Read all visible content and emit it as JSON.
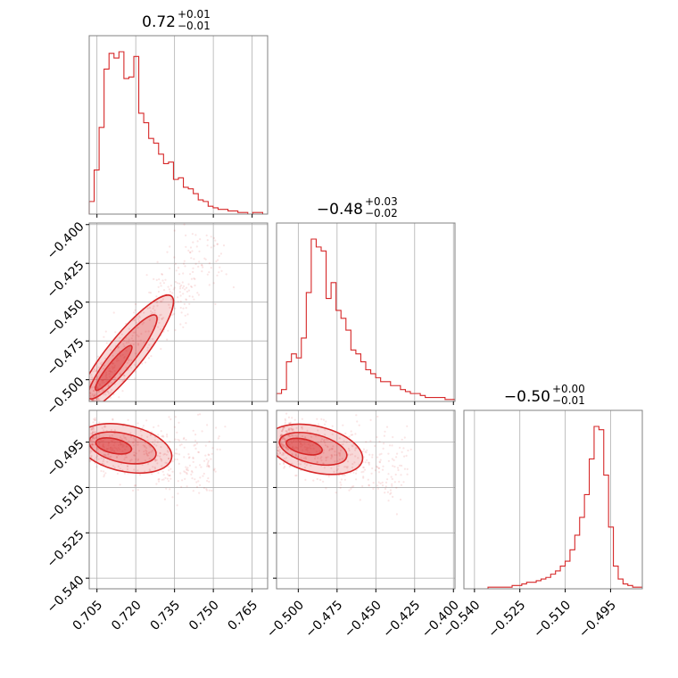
{
  "colors": {
    "series": "#d62728",
    "grid": "#b0b0b0",
    "frame": "#808080"
  },
  "chart_data": {
    "type": "corner",
    "grid": true,
    "parameters": [
      {
        "title_main": "0.72",
        "title_plus": "+0.01",
        "title_minus": "−0.01",
        "range": [
          0.702,
          0.771
        ],
        "ticks": [
          0.705,
          0.72,
          0.735,
          0.75,
          0.765
        ],
        "tick_labels": [
          "0.705",
          "0.720",
          "0.735",
          "0.750",
          "0.765"
        ]
      },
      {
        "title_main": "−0.48",
        "title_plus": "+0.03",
        "title_minus": "−0.02",
        "range": [
          -0.514,
          -0.399
        ],
        "ticks": [
          -0.5,
          -0.475,
          -0.45,
          -0.425,
          -0.4
        ],
        "tick_labels": [
          "−0.500",
          "−0.475",
          "−0.450",
          "−0.425",
          "−0.400"
        ]
      },
      {
        "title_main": "−0.50",
        "title_plus": "+0.00",
        "title_minus": "−0.01",
        "range": [
          -0.5435,
          -0.4845
        ],
        "ticks": [
          -0.54,
          -0.525,
          -0.51,
          -0.495
        ],
        "tick_labels": [
          "−0.540",
          "−0.525",
          "−0.510",
          "−0.495"
        ]
      }
    ],
    "histograms": [
      {
        "param": 0,
        "counts": [
          8,
          28,
          55,
          92,
          102,
          99,
          103,
          86,
          87,
          100,
          64,
          58,
          48,
          45,
          38,
          32,
          33,
          22,
          23,
          17,
          16,
          13,
          9,
          8,
          5,
          4,
          3,
          3,
          2,
          2,
          1,
          1,
          0,
          1,
          1,
          0
        ]
      },
      {
        "param": 1,
        "counts": [
          4,
          6,
          20,
          24,
          22,
          32,
          55,
          82,
          78,
          76,
          52,
          60,
          46,
          42,
          36,
          26,
          24,
          20,
          16,
          14,
          12,
          10,
          10,
          8,
          8,
          6,
          5,
          4,
          4,
          3,
          2,
          2,
          2,
          2,
          1,
          1
        ]
      },
      {
        "param": 2,
        "counts": [
          0,
          0,
          0,
          0,
          0,
          1,
          1,
          1,
          1,
          1,
          2,
          2,
          3,
          4,
          4,
          5,
          6,
          7,
          9,
          11,
          14,
          17,
          24,
          33,
          44,
          58,
          80,
          100,
          98,
          70,
          38,
          14,
          6,
          3,
          2,
          1,
          1
        ]
      }
    ],
    "scatter_panels": [
      {
        "x_param": 0,
        "y_param": 1,
        "trend": {
          "x": [
            0.702,
            0.745
          ],
          "y": [
            -0.512,
            -0.423
          ]
        },
        "spread": 0.006
      },
      {
        "x_param": 0,
        "y_param": 2,
        "trend": {
          "x": [
            0.702,
            0.745
          ],
          "y": [
            -0.4945,
            -0.5025
          ]
        },
        "spread": 0.004
      },
      {
        "x_param": 1,
        "y_param": 2,
        "trend": {
          "x": [
            -0.512,
            -0.44
          ],
          "y": [
            -0.4945,
            -0.5035
          ]
        },
        "spread": 0.004
      }
    ]
  }
}
